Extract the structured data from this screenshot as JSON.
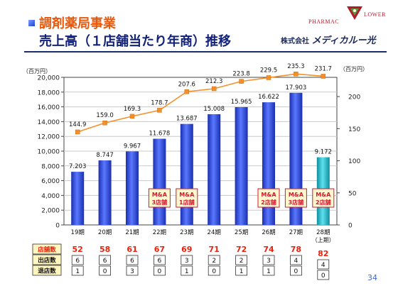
{
  "title": {
    "line1": "調剤薬局事業",
    "line2": "売上高（１店舗当たり年商）推移"
  },
  "logo": {
    "left": "PHARMAC",
    "right": "LOWER"
  },
  "company": {
    "prefix": "株式会社",
    "brand": "メディカルー光"
  },
  "page_number": "34",
  "chart_data": {
    "type": "bar",
    "categories": [
      "19期",
      "20期",
      "21期",
      "22期",
      "23期",
      "24期",
      "25期",
      "26期",
      "27期",
      "28期"
    ],
    "sub_label_last": "（上期）",
    "series": [
      {
        "values": [
          7.203,
          8.747,
          9.967,
          11.678,
          13.687,
          15.008,
          15.965,
          16.622,
          17.903,
          9.172
        ],
        "labels": [
          "7.203",
          "8.747",
          "9.967",
          "11.678",
          "13.687",
          "15.008",
          "15.965",
          "16.622",
          "17.903",
          "9.172"
        ],
        "color": "#2a44d8",
        "highlight_color": "#22b5c6",
        "axis": "left"
      },
      {
        "values": [
          144.9,
          159.0,
          169.3,
          178.7,
          207.6,
          212.3,
          223.8,
          229.5,
          235.3,
          231.7
        ],
        "labels": [
          "144.9",
          "159.0",
          "169.3",
          "178.7",
          "207.6",
          "212.3",
          "223.8",
          "229.5",
          "235.3",
          "231.7"
        ],
        "color": "#f4902a",
        "type": "line",
        "axis": "right"
      }
    ],
    "y_left": {
      "unit_label": "（百万円）",
      "ylim": [
        0,
        20000
      ],
      "ticks": [
        "0",
        "2,000",
        "4,000",
        "6,000",
        "8,000",
        "10,000",
        "12,000",
        "14,000",
        "16,000",
        "18,000",
        "20,000"
      ]
    },
    "y_right": {
      "unit_label": "（百万円）",
      "ylim": [
        0,
        230
      ],
      "ticks": [
        "0",
        "50",
        "100",
        "150",
        "200"
      ]
    },
    "annotations": [
      {
        "index": 3,
        "lines": [
          "M&A",
          "3店舗"
        ]
      },
      {
        "index": 4,
        "lines": [
          "M&A",
          "1店舗"
        ]
      },
      {
        "index": 7,
        "lines": [
          "M&A",
          "2店舗"
        ]
      },
      {
        "index": 8,
        "lines": [
          "M&A",
          "3店舗"
        ]
      },
      {
        "index": 9,
        "lines": [
          "M&A",
          "2店舗"
        ]
      }
    ],
    "grid": true,
    "table": {
      "rows": [
        {
          "label": "店舗数",
          "values": [
            "52",
            "58",
            "61",
            "67",
            "69",
            "71",
            "72",
            "74",
            "78",
            "82"
          ],
          "color": "#e8230e"
        },
        {
          "label": "出店数",
          "values": [
            "6",
            "6",
            "6",
            "6",
            "3",
            "2",
            "2",
            "3",
            "4",
            "4"
          ]
        },
        {
          "label": "退店数",
          "values": [
            "1",
            "0",
            "3",
            "0",
            "1",
            "0",
            "1",
            "1",
            "0",
            "0"
          ]
        }
      ]
    }
  }
}
